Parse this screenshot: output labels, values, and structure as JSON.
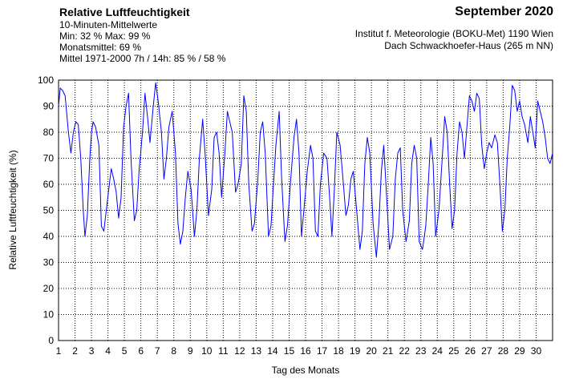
{
  "header": {
    "title": "Relative Luftfeuchtigkeit",
    "subtitle": "10-Minuten-Mittelwerte",
    "minmax": "Min:  32 %   Max:  99 %",
    "monthly": "Monatsmittel:  69 %",
    "normals": "Mittel 1971-2000 7h / 14h:  85 % / 58 %",
    "period": "September 2020",
    "institute": "Institut f. Meteorologie (BOKU-Met) 1190 Wien",
    "station": "Dach Schwackhoefer-Haus (265 m NN)"
  },
  "chart_data": {
    "type": "line",
    "xlabel": "Tag des Monats",
    "ylabel": "Relative Luftfeuchtigkeit (%)",
    "xlim": [
      1,
      31
    ],
    "ylim": [
      0,
      100
    ],
    "x_ticks": [
      1,
      2,
      3,
      4,
      5,
      6,
      7,
      8,
      9,
      10,
      11,
      12,
      13,
      14,
      15,
      16,
      17,
      18,
      19,
      20,
      21,
      22,
      23,
      24,
      25,
      26,
      27,
      28,
      29,
      30
    ],
    "y_ticks": [
      0,
      10,
      20,
      30,
      40,
      50,
      60,
      70,
      80,
      90,
      100
    ],
    "grid": true,
    "line_color": "#0000ff",
    "series": [
      {
        "x": [
          1.0,
          1.1,
          1.25,
          1.4,
          1.6,
          1.75,
          1.9,
          2.05,
          2.2,
          2.35,
          2.5,
          2.6,
          2.75,
          2.9,
          3.0,
          3.1,
          3.25,
          3.45,
          3.6,
          3.75,
          3.9,
          4.05,
          4.2,
          4.35,
          4.5,
          4.65,
          4.8,
          4.95,
          5.1,
          5.25,
          5.4,
          5.6,
          5.75,
          5.9,
          6.1,
          6.25,
          6.4,
          6.55,
          6.75,
          6.9,
          7.05,
          7.25,
          7.4,
          7.55,
          7.7,
          7.9,
          8.1,
          8.25,
          8.4,
          8.55,
          8.7,
          8.85,
          9.05,
          9.25,
          9.4,
          9.55,
          9.75,
          9.9,
          10.1,
          10.3,
          10.45,
          10.6,
          10.75,
          10.9,
          11.1,
          11.25,
          11.4,
          11.55,
          11.75,
          11.9,
          12.1,
          12.25,
          12.4,
          12.55,
          12.75,
          12.9,
          13.1,
          13.25,
          13.4,
          13.55,
          13.75,
          13.9,
          14.05,
          14.2,
          14.4,
          14.55,
          14.75,
          14.9,
          15.1,
          15.3,
          15.45,
          15.6,
          15.75,
          15.9,
          16.1,
          16.3,
          16.45,
          16.6,
          16.75,
          16.9,
          17.1,
          17.3,
          17.45,
          17.6,
          17.75,
          17.9,
          18.1,
          18.3,
          18.45,
          18.6,
          18.75,
          18.9,
          19.1,
          19.3,
          19.45,
          19.6,
          19.75,
          19.9,
          20.1,
          20.3,
          20.45,
          20.6,
          20.75,
          20.9,
          21.1,
          21.3,
          21.45,
          21.6,
          21.75,
          21.9,
          22.1,
          22.3,
          22.45,
          22.6,
          22.75,
          22.9,
          23.1,
          23.3,
          23.45,
          23.6,
          23.75,
          23.9,
          24.1,
          24.3,
          24.45,
          24.6,
          24.75,
          24.9,
          25.05,
          25.2,
          25.35,
          25.5,
          25.65,
          25.8,
          25.95,
          26.1,
          26.25,
          26.4,
          26.55,
          26.7,
          26.85,
          27.0,
          27.15,
          27.3,
          27.5,
          27.65,
          27.8,
          27.95,
          28.1,
          28.25,
          28.4,
          28.55,
          28.7,
          28.85,
          29.0,
          29.15,
          29.3,
          29.5,
          29.65,
          29.8,
          29.95,
          30.1,
          30.25,
          30.4,
          30.55,
          30.7,
          30.85,
          31.0
        ],
        "y": [
          90,
          97,
          96,
          94,
          80,
          72,
          80,
          84,
          83,
          70,
          50,
          40,
          48,
          70,
          80,
          84,
          82,
          75,
          44,
          42,
          50,
          58,
          66,
          62,
          57,
          47,
          55,
          82,
          90,
          95,
          70,
          46,
          50,
          66,
          80,
          95,
          86,
          76,
          90,
          99,
          92,
          80,
          62,
          70,
          82,
          88,
          72,
          45,
          37,
          42,
          55,
          65,
          58,
          40,
          50,
          70,
          85,
          72,
          48,
          58,
          78,
          80,
          72,
          55,
          72,
          88,
          84,
          80,
          57,
          60,
          68,
          94,
          88,
          60,
          42,
          45,
          62,
          80,
          84,
          72,
          40,
          44,
          60,
          75,
          88,
          62,
          38,
          44,
          62,
          78,
          85,
          72,
          40,
          50,
          65,
          75,
          70,
          42,
          40,
          60,
          72,
          70,
          56,
          40,
          58,
          80,
          75,
          60,
          48,
          52,
          62,
          65,
          50,
          35,
          42,
          68,
          78,
          72,
          45,
          32,
          45,
          65,
          75,
          58,
          35,
          40,
          62,
          72,
          74,
          50,
          38,
          46,
          68,
          75,
          70,
          38,
          35,
          44,
          60,
          78,
          68,
          40,
          50,
          70,
          86,
          80,
          60,
          43,
          50,
          72,
          84,
          80,
          70,
          82,
          94,
          92,
          88,
          95,
          93,
          75,
          66,
          72,
          76,
          74,
          79,
          76,
          60,
          42,
          50,
          70,
          82,
          98,
          96,
          88,
          92,
          86,
          83,
          76,
          86,
          80,
          74,
          92,
          88,
          84,
          78,
          70,
          68,
          72
        ]
      }
    ]
  }
}
